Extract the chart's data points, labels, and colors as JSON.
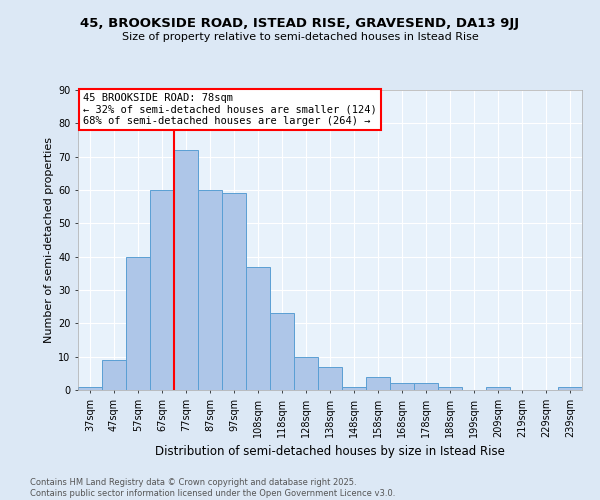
{
  "title": "45, BROOKSIDE ROAD, ISTEAD RISE, GRAVESEND, DA13 9JJ",
  "subtitle": "Size of property relative to semi-detached houses in Istead Rise",
  "xlabel": "Distribution of semi-detached houses by size in Istead Rise",
  "ylabel": "Number of semi-detached properties",
  "footnote": "Contains HM Land Registry data © Crown copyright and database right 2025.\nContains public sector information licensed under the Open Government Licence v3.0.",
  "bin_labels": [
    "37sqm",
    "47sqm",
    "57sqm",
    "67sqm",
    "77sqm",
    "87sqm",
    "97sqm",
    "108sqm",
    "118sqm",
    "128sqm",
    "138sqm",
    "148sqm",
    "158sqm",
    "168sqm",
    "178sqm",
    "188sqm",
    "199sqm",
    "209sqm",
    "219sqm",
    "229sqm",
    "239sqm"
  ],
  "bar_heights": [
    1,
    9,
    40,
    60,
    72,
    60,
    59,
    37,
    23,
    10,
    7,
    1,
    4,
    2,
    2,
    1,
    0,
    1,
    0,
    0,
    1
  ],
  "bar_color": "#aec6e8",
  "bar_edge_color": "#5a9fd4",
  "highlight_line_bin": 4,
  "highlight_line_color": "red",
  "annotation_text": "45 BROOKSIDE ROAD: 78sqm\n← 32% of semi-detached houses are smaller (124)\n68% of semi-detached houses are larger (264) →",
  "annotation_box_color": "white",
  "annotation_box_edge": "red",
  "ylim": [
    0,
    90
  ],
  "yticks": [
    0,
    10,
    20,
    30,
    40,
    50,
    60,
    70,
    80,
    90
  ],
  "bg_color": "#dce8f5",
  "plot_bg_color": "#e8f2fb",
  "title_fontsize": 9.5,
  "subtitle_fontsize": 8,
  "ylabel_fontsize": 8,
  "xlabel_fontsize": 8.5,
  "tick_fontsize": 7,
  "footnote_fontsize": 6,
  "annotation_fontsize": 7.5
}
